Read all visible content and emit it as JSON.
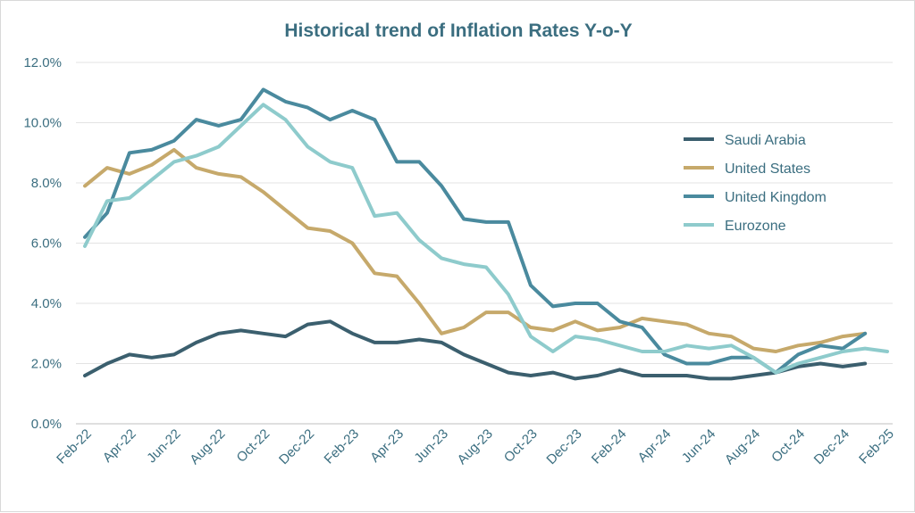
{
  "chart_data": {
    "type": "line",
    "title": "Historical trend of Inflation Rates Y-o-Y",
    "xlabel": "",
    "ylabel": "",
    "ylim": [
      0,
      12
    ],
    "yticks": [
      "0.0%",
      "2.0%",
      "4.0%",
      "6.0%",
      "8.0%",
      "10.0%",
      "12.0%"
    ],
    "x": [
      "Feb-22",
      "Mar-22",
      "Apr-22",
      "May-22",
      "Jun-22",
      "Jul-22",
      "Aug-22",
      "Sep-22",
      "Oct-22",
      "Nov-22",
      "Dec-22",
      "Jan-23",
      "Feb-23",
      "Mar-23",
      "Apr-23",
      "May-23",
      "Jun-23",
      "Jul-23",
      "Aug-23",
      "Sep-23",
      "Oct-23",
      "Nov-23",
      "Dec-23",
      "Jan-24",
      "Feb-24",
      "Mar-24",
      "Apr-24",
      "May-24",
      "Jun-24",
      "Jul-24",
      "Aug-24",
      "Sep-24",
      "Oct-24",
      "Nov-24",
      "Dec-24",
      "Jan-25",
      "Feb-25"
    ],
    "xticks": [
      "Feb-22",
      "Apr-22",
      "Jun-22",
      "Aug-22",
      "Oct-22",
      "Dec-22",
      "Feb-23",
      "Apr-23",
      "Jun-23",
      "Aug-23",
      "Oct-23",
      "Dec-23",
      "Feb-24",
      "Apr-24",
      "Jun-24",
      "Aug-24",
      "Oct-24",
      "Dec-24",
      "Feb-25"
    ],
    "grid": true,
    "legend_position": "right",
    "series": [
      {
        "name": "Saudi Arabia",
        "color": "#3b5f6e",
        "values": [
          1.6,
          2.0,
          2.3,
          2.2,
          2.3,
          2.7,
          3.0,
          3.1,
          3.0,
          2.9,
          3.3,
          3.4,
          3.0,
          2.7,
          2.7,
          2.8,
          2.7,
          2.3,
          2.0,
          1.7,
          1.6,
          1.7,
          1.5,
          1.6,
          1.8,
          1.6,
          1.6,
          1.6,
          1.5,
          1.5,
          1.6,
          1.7,
          1.9,
          2.0,
          1.9,
          2.0,
          null
        ]
      },
      {
        "name": "United States",
        "color": "#c6a96b",
        "values": [
          7.9,
          8.5,
          8.3,
          8.6,
          9.1,
          8.5,
          8.3,
          8.2,
          7.7,
          7.1,
          6.5,
          6.4,
          6.0,
          5.0,
          4.9,
          4.0,
          3.0,
          3.2,
          3.7,
          3.7,
          3.2,
          3.1,
          3.4,
          3.1,
          3.2,
          3.5,
          3.4,
          3.3,
          3.0,
          2.9,
          2.5,
          2.4,
          2.6,
          2.7,
          2.9,
          3.0,
          null
        ]
      },
      {
        "name": "United Kingdom",
        "color": "#4a8a9e",
        "values": [
          6.2,
          7.0,
          9.0,
          9.1,
          9.4,
          10.1,
          9.9,
          10.1,
          11.1,
          10.7,
          10.5,
          10.1,
          10.4,
          10.1,
          8.7,
          8.7,
          7.9,
          6.8,
          6.7,
          6.7,
          4.6,
          3.9,
          4.0,
          4.0,
          3.4,
          3.2,
          2.3,
          2.0,
          2.0,
          2.2,
          2.2,
          1.7,
          2.3,
          2.6,
          2.5,
          3.0,
          null
        ]
      },
      {
        "name": "Eurozone",
        "color": "#8ecbcc",
        "values": [
          5.9,
          7.4,
          7.5,
          8.1,
          8.7,
          8.9,
          9.2,
          9.9,
          10.6,
          10.1,
          9.2,
          8.7,
          8.5,
          6.9,
          7.0,
          6.1,
          5.5,
          5.3,
          5.2,
          4.3,
          2.9,
          2.4,
          2.9,
          2.8,
          2.6,
          2.4,
          2.4,
          2.6,
          2.5,
          2.6,
          2.2,
          1.7,
          2.0,
          2.2,
          2.4,
          2.5,
          2.4
        ]
      }
    ]
  },
  "style": {
    "title_color": "#3b6e80",
    "tick_color": "#3b6e80",
    "legend_text_color": "#3b6e80",
    "grid_color": "#e3e3e3",
    "axis_color": "#bfbfbf"
  }
}
